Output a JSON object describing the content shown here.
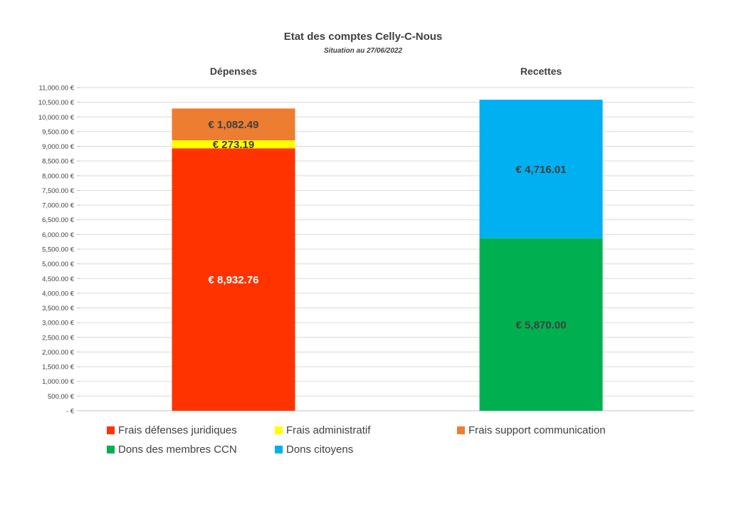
{
  "chart_data": {
    "type": "bar",
    "stacked": true,
    "title": "Etat des comptes Celly-C-Nous",
    "subtitle": "Situation au 27/06/2022",
    "categories": [
      "Dépenses",
      "Recettes"
    ],
    "ylim": [
      0,
      11000
    ],
    "ytick_step": 500,
    "grid": true,
    "legend_position": "bottom",
    "series": [
      {
        "name": "Frais défenses juridiques",
        "category": "Dépenses",
        "value": 8932.76,
        "label": "€ 8,932.76",
        "color": "#FF3300",
        "label_color": "#ffffff"
      },
      {
        "name": "Frais administratif",
        "category": "Dépenses",
        "value": 273.19,
        "label": "€ 273.19",
        "color": "#FFFF00",
        "label_color": "#404040"
      },
      {
        "name": "Frais support communication",
        "category": "Dépenses",
        "value": 1082.49,
        "label": "€ 1,082.49",
        "color": "#ED7D31",
        "label_color": "#404040"
      },
      {
        "name": "Dons des membres CCN",
        "category": "Recettes",
        "value": 5870.0,
        "label": "€ 5,870.00",
        "color": "#00B050",
        "label_color": "#404040"
      },
      {
        "name": "Dons citoyens",
        "category": "Recettes",
        "value": 4716.01,
        "label": "€ 4,716.01",
        "color": "#00B0F0",
        "label_color": "#404040"
      }
    ]
  }
}
